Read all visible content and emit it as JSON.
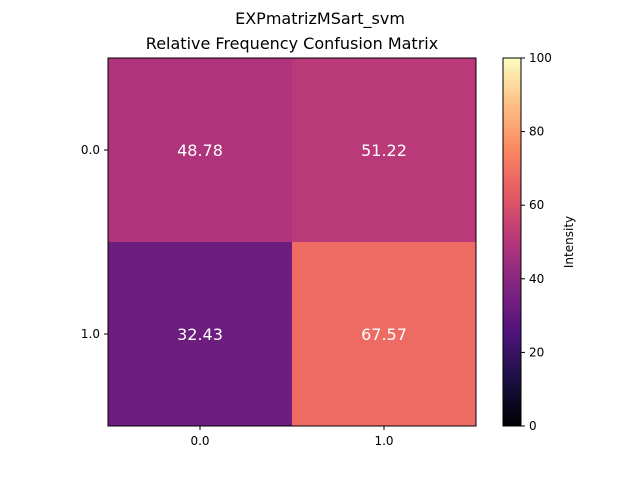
{
  "chart_data": {
    "type": "heatmap",
    "suptitle": "EXPmatrizMSart_svm",
    "title": "Relative Frequency Confusion Matrix",
    "row_labels": [
      "0.0",
      "1.0"
    ],
    "col_labels": [
      "0.0",
      "1.0"
    ],
    "values": [
      [
        48.78,
        51.22
      ],
      [
        32.43,
        67.57
      ]
    ],
    "value_labels": [
      [
        "48.78",
        "51.22"
      ],
      [
        "32.43",
        "67.57"
      ]
    ],
    "colormap": "magma",
    "colorbar": {
      "label": "Intensity",
      "range": [
        0,
        100
      ],
      "ticks": [
        "0",
        "20",
        "40",
        "60",
        "80",
        "100"
      ]
    },
    "grid": false
  }
}
